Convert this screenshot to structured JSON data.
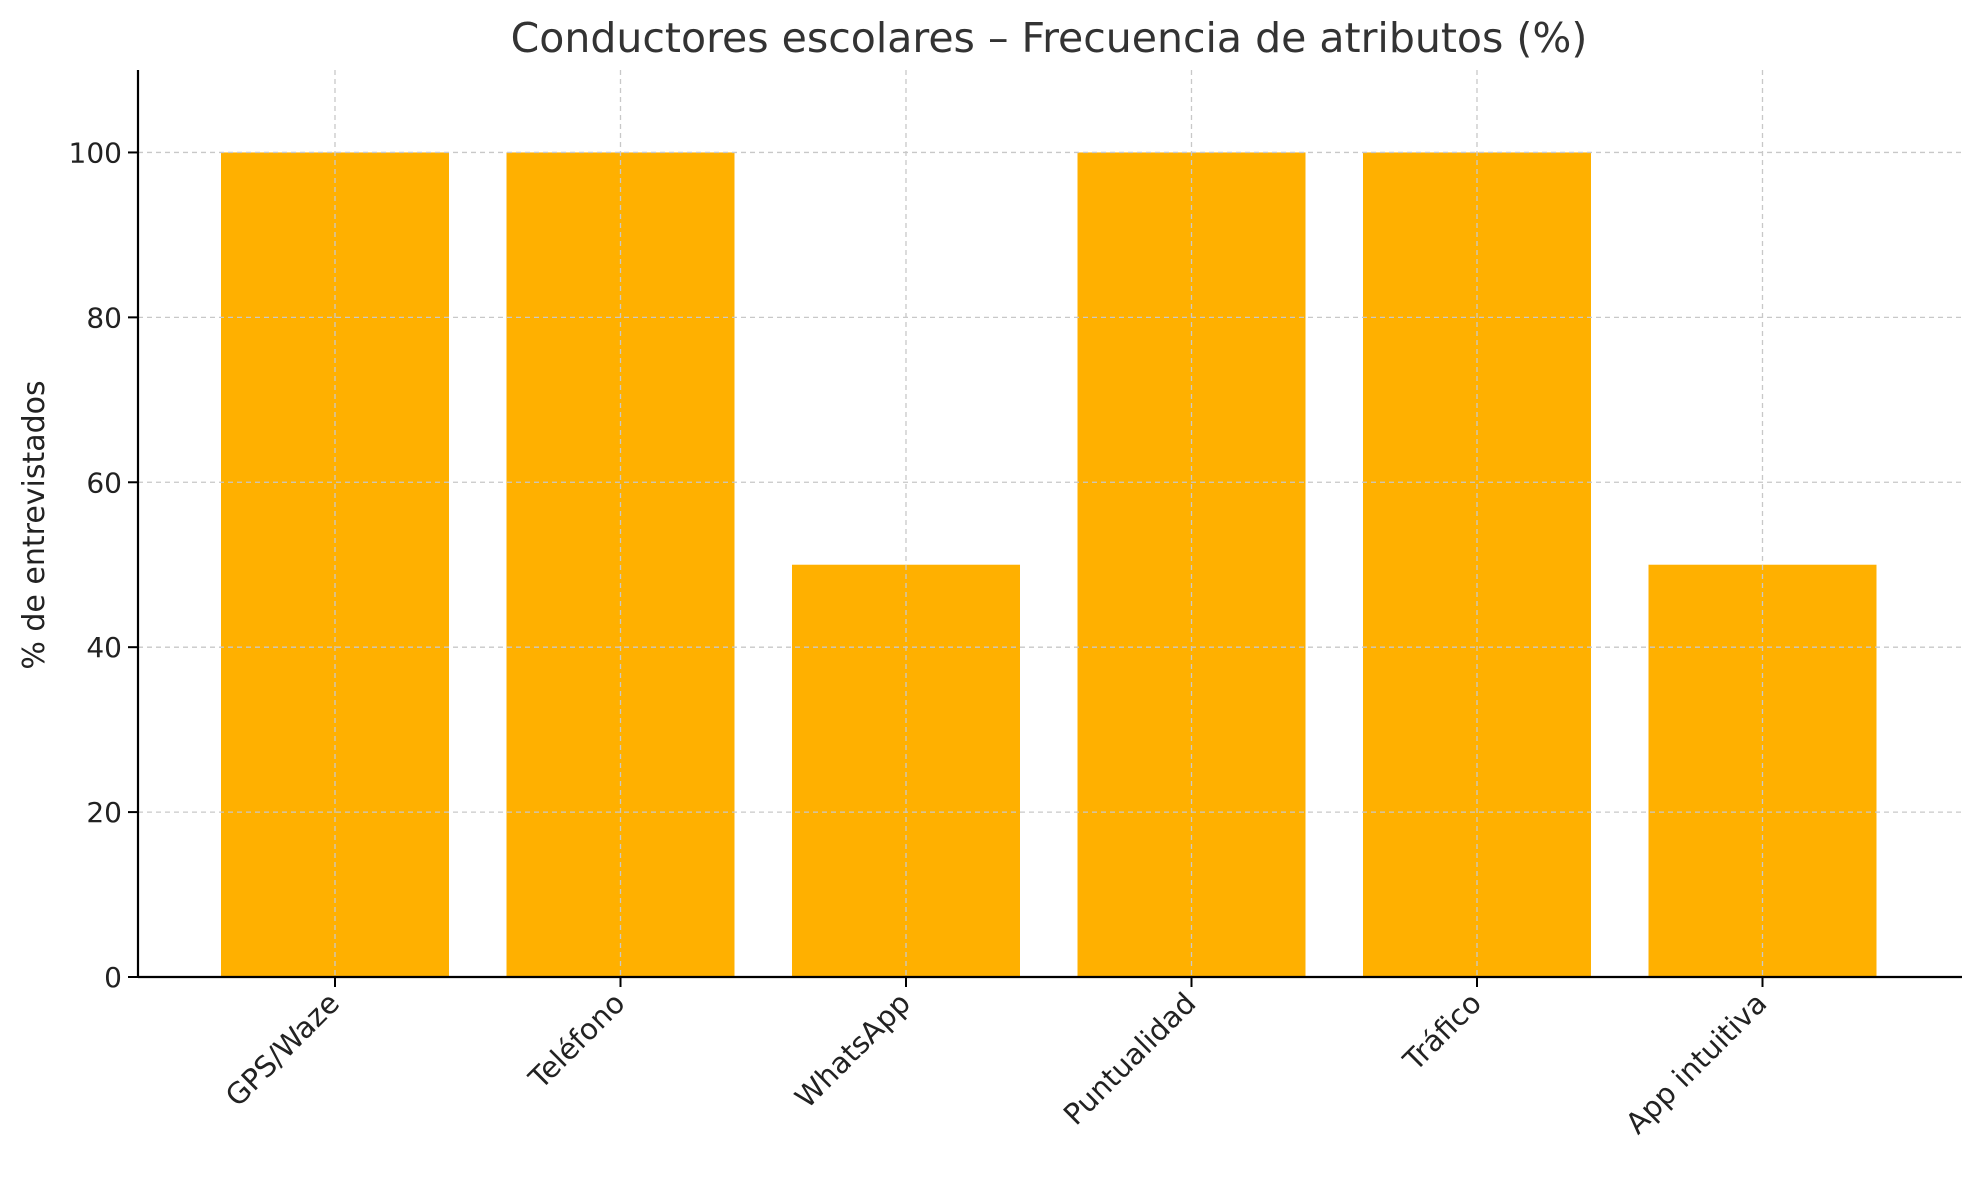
{
  "chart_data": {
    "type": "bar",
    "title": "Conductores escolares – Frecuencia de atributos (%)",
    "xlabel": "",
    "ylabel": "% de entrevistados",
    "categories": [
      "GPS/Waze",
      "Teléfono",
      "WhatsApp",
      "Puntualidad",
      "Tráfico",
      "App intuitiva"
    ],
    "values": [
      100,
      100,
      50,
      100,
      100,
      50
    ],
    "ylim": [
      0,
      110
    ],
    "yticks": [
      0,
      20,
      40,
      60,
      80,
      100
    ],
    "grid": true,
    "legend": "none",
    "bar_color": "#FFB000",
    "grid_color": "#c8c8c8",
    "axis_color": "#000000"
  }
}
